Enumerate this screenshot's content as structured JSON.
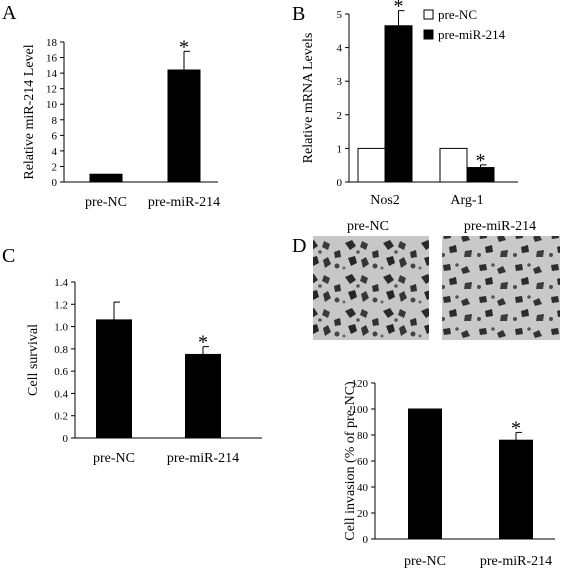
{
  "chart_data": [
    {
      "panel": "A",
      "type": "bar",
      "ylabel": "Relative miR-214 Level",
      "ylim": [
        0,
        18
      ],
      "yticks": [
        "0",
        "2",
        "4",
        "6",
        "8",
        "10",
        "12",
        "14",
        "16",
        "18"
      ],
      "categories": [
        "pre-NC",
        "pre-miR-214"
      ],
      "values": [
        1.0,
        14.4
      ],
      "errors": [
        0,
        2.4
      ],
      "significance": [
        "",
        "*"
      ],
      "color": "#000000"
    },
    {
      "panel": "B",
      "type": "bar",
      "ylabel": "Relative mRNA Levels",
      "ylim": [
        0,
        5
      ],
      "yticks": [
        "0",
        "1",
        "2",
        "3",
        "4",
        "5"
      ],
      "categories": [
        "Nos2",
        "Arg-1"
      ],
      "series": [
        {
          "name": "pre-NC",
          "values": [
            1.0,
            1.0
          ],
          "errors": [
            0,
            0
          ],
          "significance": [
            "",
            ""
          ],
          "color": "#ffffff"
        },
        {
          "name": "pre-miR-214",
          "values": [
            4.65,
            0.43
          ],
          "errors": [
            0.45,
            0.08
          ],
          "significance": [
            "*",
            "*"
          ],
          "color": "#000000"
        }
      ],
      "legend": "top-right"
    },
    {
      "panel": "C",
      "type": "bar",
      "ylabel": "Cell survival",
      "ylim": [
        0,
        1.4
      ],
      "yticks": [
        "0",
        "0.2",
        "0.4",
        "0.6",
        "0.8",
        "1.0",
        "1.2",
        "1.4"
      ],
      "categories": [
        "pre-NC",
        "pre-miR-214"
      ],
      "values": [
        1.06,
        0.75
      ],
      "errors": [
        0.16,
        0.07
      ],
      "significance": [
        "",
        "*"
      ],
      "color": "#000000"
    },
    {
      "panel": "D",
      "type": "bar",
      "ylabel": "Cell invasion (% of pre-NC)",
      "ylim": [
        0,
        120
      ],
      "yticks": [
        "0",
        "20",
        "40",
        "60",
        "80",
        "100",
        "120"
      ],
      "categories": [
        "pre-NC",
        "pre-miR-214"
      ],
      "values": [
        100,
        76
      ],
      "errors": [
        0,
        6
      ],
      "significance": [
        "",
        "*"
      ],
      "color": "#000000",
      "image_labels": [
        "pre-NC",
        "pre-miR-214"
      ]
    }
  ]
}
